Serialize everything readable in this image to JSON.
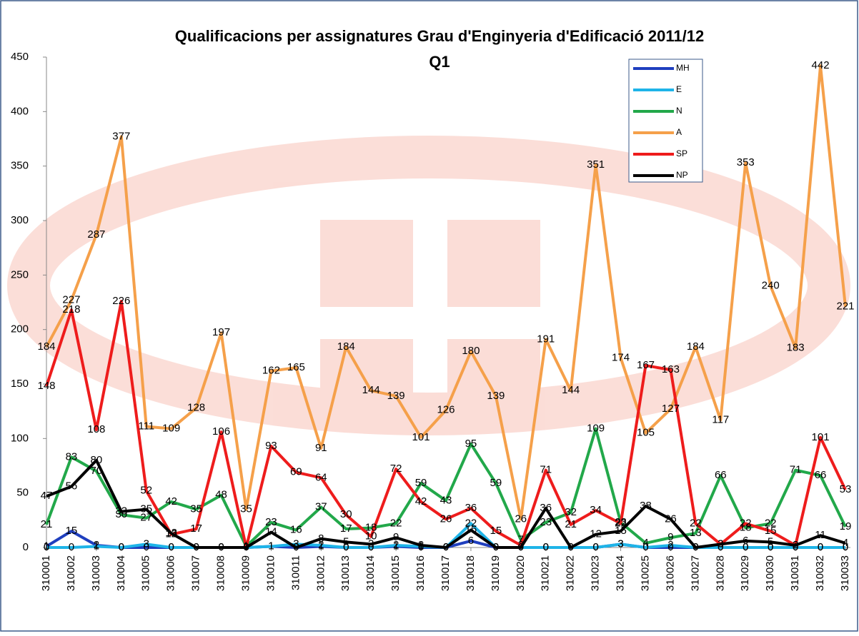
{
  "chart_data": {
    "type": "line",
    "title": [
      "Qualificacions per assignatures Grau d'Enginyeria d'Edificació 2011/12",
      "Q1"
    ],
    "categories": [
      "310001",
      "310002",
      "310003",
      "310004",
      "310005",
      "310006",
      "310007",
      "310008",
      "310009",
      "310010",
      "310011",
      "310012",
      "310013",
      "310014",
      "310015",
      "310016",
      "310017",
      "310018",
      "310019",
      "310020",
      "310021",
      "310022",
      "310023",
      "310024",
      "310025",
      "310026",
      "310027",
      "310028",
      "310029",
      "310030",
      "310031",
      "310032",
      "310033"
    ],
    "series": [
      {
        "name": "MH",
        "color": "#1f3fbf",
        "values": [
          1,
          15,
          2,
          0,
          0,
          0,
          0,
          0,
          0,
          1,
          0,
          1,
          0,
          0,
          1,
          0,
          0,
          6,
          0,
          0,
          0,
          0,
          0,
          3,
          0,
          0,
          0,
          0,
          0,
          0,
          0,
          0,
          0
        ]
      },
      {
        "name": "E",
        "color": "#1eb4e8",
        "values": [
          0,
          0,
          1,
          0,
          3,
          0,
          0,
          0,
          0,
          1,
          3,
          2,
          0,
          0,
          2,
          1,
          0,
          22,
          0,
          0,
          0,
          0,
          0,
          3,
          0,
          2,
          0,
          0,
          0,
          0,
          0,
          0,
          0
        ]
      },
      {
        "name": "N",
        "color": "#22a84a",
        "values": [
          21,
          83,
          70,
          30,
          27,
          42,
          35,
          48,
          1,
          23,
          16,
          37,
          17,
          18,
          22,
          59,
          43,
          95,
          59,
          7,
          23,
          32,
          109,
          23,
          4,
          9,
          13,
          66,
          18,
          22,
          71,
          66,
          19
        ]
      },
      {
        "name": "A",
        "color": "#f5a04a",
        "values": [
          184,
          227,
          287,
          377,
          111,
          109,
          128,
          197,
          35,
          162,
          165,
          91,
          184,
          144,
          139,
          101,
          126,
          180,
          139,
          26,
          191,
          144,
          351,
          174,
          105,
          127,
          184,
          117,
          353,
          240,
          183,
          442,
          221
        ]
      },
      {
        "name": "SP",
        "color": "#ee1c1c",
        "values": [
          148,
          218,
          108,
          226,
          52,
          12,
          17,
          106,
          0,
          93,
          69,
          64,
          30,
          10,
          72,
          42,
          26,
          36,
          15,
          2,
          71,
          21,
          34,
          22,
          167,
          163,
          22,
          3,
          22,
          15,
          2,
          101,
          53
        ]
      },
      {
        "name": "NP",
        "color": "#000000",
        "values": [
          47,
          56,
          80,
          33,
          35,
          13,
          0,
          0,
          0,
          14,
          0,
          8,
          5,
          3,
          9,
          2,
          0,
          16,
          0,
          0,
          36,
          0,
          12,
          15,
          38,
          26,
          0,
          3,
          6,
          5,
          2,
          11,
          4
        ]
      }
    ],
    "ylim": [
      0,
      450
    ],
    "yticks": [
      0,
      50,
      100,
      150,
      200,
      250,
      300,
      350,
      400,
      450
    ],
    "grid": false,
    "legend": "top-right"
  }
}
